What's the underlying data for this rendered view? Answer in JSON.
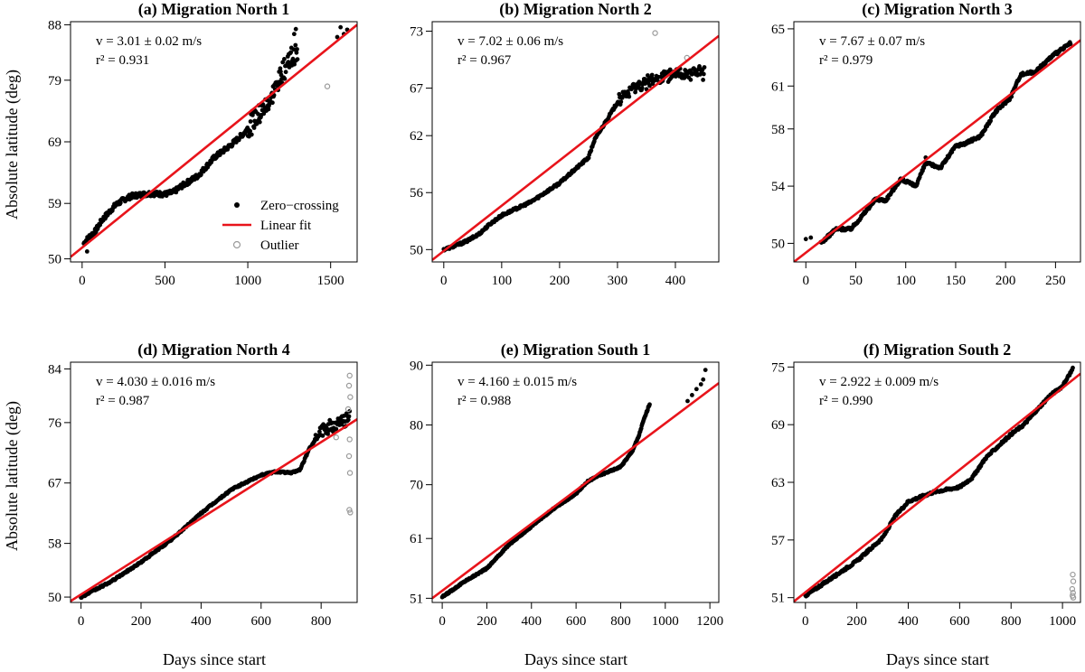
{
  "colors": {
    "data": "#000000",
    "fit": "#e8141b",
    "outlier": "#9a9a9a"
  },
  "axis_labels": {
    "x": "Days since start",
    "y": "Absolute latitude (deg)"
  },
  "legend": {
    "zero_crossing": "Zero−crossing",
    "linear_fit": "Linear fit",
    "outlier": "Outlier"
  },
  "chart_data": [
    {
      "type": "scatter",
      "title": "(a)  Migration North 1",
      "velocity": "v = 3.01 ± 0.02 m/s",
      "r2": "r² = 0.931",
      "xlim": [
        -70,
        1660
      ],
      "ylim": [
        49.5,
        88.5
      ],
      "xticks": [
        0,
        500,
        1000,
        1500
      ],
      "yticks": [
        50,
        59,
        69,
        79,
        88
      ],
      "fit": [
        [
          -70,
          50.3
        ],
        [
          1660,
          88.0
        ]
      ],
      "trace": [
        [
          10,
          52.5
        ],
        [
          40,
          53.5
        ],
        [
          80,
          54.5
        ],
        [
          120,
          56.3
        ],
        [
          150,
          57.2
        ],
        [
          200,
          58.7
        ],
        [
          250,
          59.6
        ],
        [
          300,
          60.2
        ],
        [
          400,
          60.6
        ],
        [
          500,
          60.5
        ],
        [
          550,
          60.8
        ],
        [
          600,
          61.8
        ],
        [
          700,
          63.5
        ],
        [
          800,
          66.5
        ],
        [
          900,
          68.5
        ],
        [
          980,
          70.5
        ],
        [
          1050,
          73.0
        ],
        [
          1100,
          74.5
        ],
        [
          1150,
          76.5
        ],
        [
          1200,
          80.0
        ],
        [
          1250,
          82.5
        ],
        [
          1300,
          83.0
        ]
      ],
      "noise": 0.8,
      "band_from": 1000,
      "band_width": 3.2,
      "extra_points": [
        [
          30,
          51.2
        ],
        [
          1280,
          86.5
        ],
        [
          1290,
          87.3
        ],
        [
          1540,
          86.0
        ],
        [
          1560,
          87.6
        ],
        [
          1580,
          86.5
        ],
        [
          1600,
          87.2
        ]
      ],
      "outliers": [
        [
          1480,
          78.0
        ]
      ]
    },
    {
      "type": "scatter",
      "title": "(b)  Migration North 2",
      "velocity": "v = 7.02 ± 0.06 m/s",
      "r2": "r² = 0.967",
      "xlim": [
        -20,
        475
      ],
      "ylim": [
        48.7,
        74.0
      ],
      "xticks": [
        0,
        100,
        200,
        300,
        400
      ],
      "yticks": [
        50,
        56,
        62,
        67,
        73
      ],
      "fit": [
        [
          -20,
          48.9
        ],
        [
          475,
          72.5
        ]
      ],
      "trace": [
        [
          0,
          50.0
        ],
        [
          20,
          50.4
        ],
        [
          40,
          50.9
        ],
        [
          60,
          51.6
        ],
        [
          80,
          52.7
        ],
        [
          100,
          53.6
        ],
        [
          150,
          55.0
        ],
        [
          200,
          57.0
        ],
        [
          250,
          59.7
        ],
        [
          260,
          61.5
        ],
        [
          280,
          63.5
        ],
        [
          300,
          65.5
        ],
        [
          330,
          67.0
        ],
        [
          360,
          67.8
        ],
        [
          400,
          68.5
        ],
        [
          450,
          68.6
        ]
      ],
      "noise": 0.25,
      "band_from": 300,
      "band_width": 1.3,
      "extra_points": [],
      "outliers": [
        [
          365,
          72.8
        ],
        [
          420,
          70.2
        ]
      ]
    },
    {
      "type": "scatter",
      "title": "(c)  Migration North 3",
      "velocity": "v = 7.67 ± 0.07 m/s",
      "r2": "r² = 0.979",
      "xlim": [
        -12,
        275
      ],
      "ylim": [
        48.7,
        65.5
      ],
      "xticks": [
        0,
        50,
        100,
        150,
        200,
        250
      ],
      "yticks": [
        50,
        54,
        58,
        61,
        65
      ],
      "fit": [
        [
          -12,
          48.7
        ],
        [
          275,
          64.2
        ]
      ],
      "trace": [
        [
          15,
          50.0
        ],
        [
          30,
          51.0
        ],
        [
          45,
          51.0
        ],
        [
          55,
          51.8
        ],
        [
          70,
          53.1
        ],
        [
          80,
          53.0
        ],
        [
          95,
          54.5
        ],
        [
          110,
          54.0
        ],
        [
          120,
          55.6
        ],
        [
          135,
          55.3
        ],
        [
          150,
          56.8
        ],
        [
          160,
          57.0
        ],
        [
          175,
          57.5
        ],
        [
          190,
          59.2
        ],
        [
          205,
          60.2
        ],
        [
          215,
          61.8
        ],
        [
          230,
          62.0
        ],
        [
          245,
          63.0
        ],
        [
          265,
          64.0
        ]
      ],
      "noise": 0.2,
      "band_from": 999,
      "band_width": 0,
      "extra_points": [
        [
          0,
          50.3
        ],
        [
          5,
          50.4
        ],
        [
          120,
          56.0
        ]
      ],
      "outliers": []
    },
    {
      "type": "scatter",
      "title": "(d)  Migration North 4",
      "velocity": "v = 4.030 ± 0.016 m/s",
      "r2": "r² = 0.987",
      "xlim": [
        -35,
        920
      ],
      "ylim": [
        49.2,
        85.0
      ],
      "xticks": [
        0,
        200,
        400,
        600,
        800
      ],
      "yticks": [
        50,
        58,
        67,
        76,
        84
      ],
      "fit": [
        [
          -35,
          49.4
        ],
        [
          920,
          76.5
        ]
      ],
      "trace": [
        [
          0,
          50.0
        ],
        [
          100,
          52.3
        ],
        [
          200,
          55.2
        ],
        [
          300,
          58.5
        ],
        [
          400,
          62.5
        ],
        [
          500,
          66.0
        ],
        [
          600,
          68.2
        ],
        [
          650,
          68.7
        ],
        [
          700,
          68.5
        ],
        [
          730,
          69.0
        ],
        [
          760,
          72.0
        ],
        [
          800,
          75.0
        ],
        [
          850,
          75.8
        ],
        [
          880,
          76.3
        ],
        [
          895,
          77.0
        ]
      ],
      "noise": 0.25,
      "band_from": 780,
      "band_width": 2.0,
      "extra_points": [],
      "outliers": [
        [
          895,
          83.0
        ],
        [
          893,
          81.5
        ],
        [
          897,
          79.8
        ],
        [
          890,
          78.0
        ],
        [
          895,
          73.5
        ],
        [
          893,
          71.0
        ],
        [
          896,
          68.5
        ],
        [
          894,
          63.0
        ],
        [
          897,
          62.6
        ],
        [
          850,
          73.8
        ]
      ]
    },
    {
      "type": "scatter",
      "title": "(e)  Migration South 1",
      "velocity": "v = 4.160 ± 0.015 m/s",
      "r2": "r² = 0.988",
      "xlim": [
        -45,
        1240
      ],
      "ylim": [
        50.3,
        90.5
      ],
      "xticks": [
        0,
        200,
        400,
        600,
        800,
        1000,
        1200
      ],
      "yticks": [
        51,
        61,
        70,
        80,
        90
      ],
      "fit": [
        [
          -45,
          51.0
        ],
        [
          1240,
          87.0
        ]
      ],
      "trace": [
        [
          0,
          51.2
        ],
        [
          100,
          53.8
        ],
        [
          200,
          56.0
        ],
        [
          300,
          60.0
        ],
        [
          400,
          63.0
        ],
        [
          500,
          66.0
        ],
        [
          600,
          68.5
        ],
        [
          650,
          70.5
        ],
        [
          700,
          71.5
        ],
        [
          800,
          73.0
        ],
        [
          850,
          75.5
        ],
        [
          880,
          78.0
        ],
        [
          900,
          80.5
        ],
        [
          920,
          82.5
        ],
        [
          930,
          83.5
        ]
      ],
      "noise": 0.25,
      "band_from": 999,
      "band_width": 0,
      "extra_points": [
        [
          1100,
          84.0
        ],
        [
          1120,
          85.0
        ],
        [
          1140,
          86.0
        ],
        [
          1160,
          86.8
        ],
        [
          1170,
          87.6
        ],
        [
          1180,
          89.2
        ]
      ],
      "outliers": []
    },
    {
      "type": "scatter",
      "title": "(f)  Migration South 2",
      "velocity": "v = 2.922 ± 0.009 m/s",
      "r2": "r² = 0.990",
      "xlim": [
        -45,
        1070
      ],
      "ylim": [
        50.5,
        75.5
      ],
      "xticks": [
        0,
        200,
        400,
        600,
        800,
        1000
      ],
      "yticks": [
        51,
        57,
        63,
        69,
        75
      ],
      "fit": [
        [
          -45,
          50.6
        ],
        [
          1070,
          74.3
        ]
      ],
      "trace": [
        [
          0,
          51.2
        ],
        [
          100,
          53.0
        ],
        [
          200,
          54.8
        ],
        [
          300,
          57.2
        ],
        [
          350,
          59.5
        ],
        [
          400,
          61.0
        ],
        [
          500,
          62.0
        ],
        [
          600,
          62.5
        ],
        [
          650,
          63.5
        ],
        [
          700,
          65.5
        ],
        [
          800,
          68.0
        ],
        [
          850,
          69.0
        ],
        [
          900,
          70.5
        ],
        [
          950,
          72.0
        ],
        [
          1000,
          73.0
        ],
        [
          1040,
          74.8
        ]
      ],
      "noise": 0.25,
      "band_from": 999,
      "band_width": 0,
      "extra_points": [],
      "outliers": [
        [
          1040,
          53.4
        ],
        [
          1042,
          52.7
        ],
        [
          1038,
          51.9
        ],
        [
          1041,
          51.5
        ],
        [
          1039,
          51.2
        ],
        [
          1042,
          51.0
        ]
      ]
    }
  ]
}
